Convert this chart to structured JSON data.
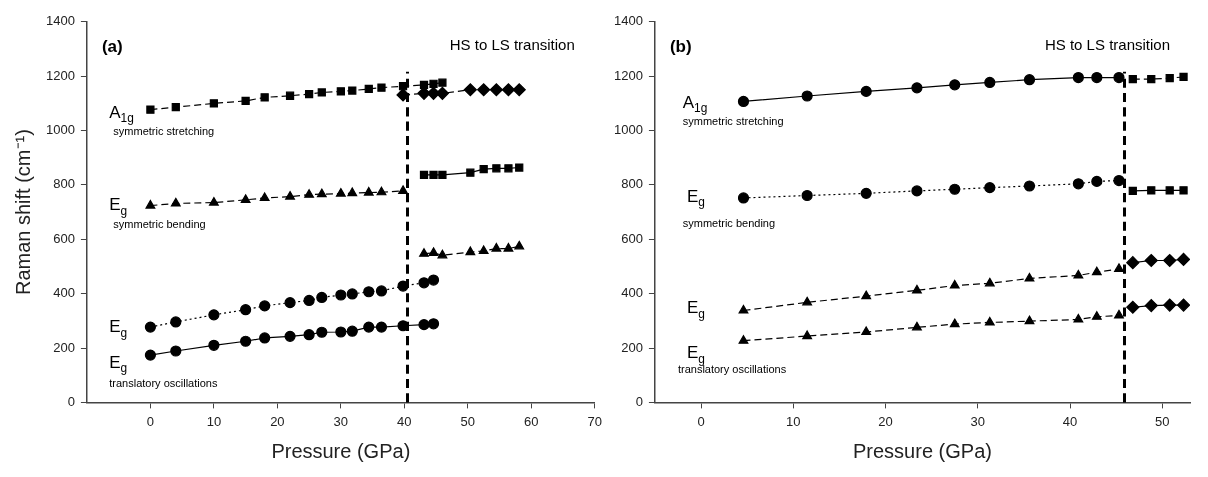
{
  "chart_data": [
    {
      "type": "line",
      "title": "(a)",
      "xlabel": "Pressure (GPa)",
      "ylabel": "Raman shift (cm⁻¹)",
      "xlim": [
        -10,
        70
      ],
      "xticks": [
        0,
        10,
        20,
        30,
        40,
        50,
        60,
        70
      ],
      "ylim": [
        0,
        1400
      ],
      "yticks": [
        0,
        200,
        400,
        600,
        800,
        1000,
        1200,
        1400
      ],
      "series": [
        {
          "color": "#000000",
          "marker": "square",
          "line_style": "dashed",
          "x": [
            0,
            4,
            10,
            15,
            18,
            22,
            25,
            27,
            30,
            31.8,
            34.4,
            36.4,
            39.8,
            43.1,
            44.6,
            46
          ],
          "values": [
            1077,
            1086,
            1100,
            1109,
            1122,
            1128,
            1134,
            1140,
            1144,
            1147,
            1153,
            1158,
            1163,
            1168,
            1172,
            1176
          ]
        },
        {
          "color": "#000000",
          "marker": "diamond",
          "line_style": "dashed",
          "x": [
            39.8,
            43.1,
            44.6,
            46,
            50.4,
            52.5,
            54.5,
            56.4,
            58.1
          ],
          "values": [
            1131,
            1137,
            1137,
            1137,
            1150,
            1150,
            1150,
            1150,
            1150
          ]
        },
        {
          "color": "#000000",
          "marker": "triangle",
          "line_style": "dashed",
          "x": [
            0,
            4,
            10,
            15,
            18,
            22,
            25,
            27,
            30,
            31.8,
            34.4,
            36.4,
            39.8
          ],
          "values": [
            724,
            732,
            735,
            745,
            752,
            757,
            764,
            766,
            768,
            770,
            772,
            773,
            778
          ]
        },
        {
          "color": "#000000",
          "marker": "square",
          "line_style": "solid",
          "x": [
            43.1,
            44.6,
            46,
            50.4,
            52.5,
            54.5,
            56.4,
            58.1
          ],
          "values": [
            837,
            837,
            837,
            845,
            858,
            861,
            861,
            864
          ]
        },
        {
          "color": "#000000",
          "marker": "triangle",
          "line_style": "dashed",
          "x": [
            43.1,
            44.6,
            46,
            50.4,
            52.5,
            54.5,
            56.4,
            58.1
          ],
          "values": [
            547,
            550,
            541,
            553,
            557,
            566,
            566,
            574
          ]
        },
        {
          "color": "#000000",
          "marker": "circle",
          "line_style": "dotted",
          "x": [
            0,
            4,
            10,
            15,
            18,
            22,
            25,
            27,
            30,
            31.8,
            34.4,
            36.4,
            39.8,
            43.1,
            44.6
          ],
          "values": [
            277,
            296,
            322,
            341,
            355,
            367,
            375,
            386,
            395,
            399,
            407,
            410,
            428,
            440,
            450
          ]
        },
        {
          "color": "#000000",
          "marker": "circle",
          "line_style": "solid",
          "x": [
            0,
            4,
            10,
            15,
            18,
            22,
            25,
            27,
            30,
            31.8,
            34.4,
            36.4,
            39.8,
            43.1,
            44.6
          ],
          "values": [
            174,
            189,
            210,
            225,
            237,
            243,
            249,
            258,
            259,
            262,
            277,
            277,
            282,
            286,
            289
          ]
        }
      ],
      "ref_lines": [
        {
          "axis": "x",
          "value": 40.5,
          "label": "HS to LS transition",
          "line_style": "dashed",
          "color": "#000000"
        }
      ],
      "annotations": [
        "A$_{1g}$",
        "symmetric stretching",
        "E$_{g}$",
        "symmetric bending",
        "E$_{g}$",
        "E$_{g}$",
        "translatory oscillations"
      ]
    },
    {
      "type": "line",
      "title": "(b)",
      "xlabel": "Pressure (GPa)",
      "xlim": [
        -5,
        53
      ],
      "xticks": [
        0,
        10,
        20,
        30,
        40,
        50
      ],
      "ylim": [
        0,
        1400
      ],
      "yticks": [
        0,
        200,
        400,
        600,
        800,
        1000,
        1200,
        1400
      ],
      "series": [
        {
          "color": "#000000",
          "marker": "circle",
          "line_style": "solid",
          "x": [
            4.6,
            11.5,
            17.9,
            23.4,
            27.5,
            31.3,
            35.6,
            40.9,
            42.9,
            45.3
          ],
          "values": [
            1107,
            1127,
            1144,
            1157,
            1168,
            1177,
            1187,
            1195,
            1195,
            1195
          ]
        },
        {
          "color": "#000000",
          "marker": "square",
          "line_style": "dashed",
          "x": [
            46.8,
            48.8,
            50.8,
            52.3
          ],
          "values": [
            1189,
            1189,
            1193,
            1197
          ]
        },
        {
          "color": "#000000",
          "marker": "circle",
          "line_style": "dotted",
          "x": [
            4.6,
            11.5,
            17.9,
            23.4,
            27.5,
            31.3,
            35.6,
            40.9,
            42.9,
            45.3
          ],
          "values": [
            752,
            761,
            769,
            778,
            784,
            790,
            796,
            804,
            813,
            816
          ]
        },
        {
          "color": "#000000",
          "marker": "square",
          "line_style": "solid",
          "x": [
            46.8,
            48.8,
            50.8,
            52.3
          ],
          "values": [
            778,
            780,
            780,
            780
          ]
        },
        {
          "color": "#000000",
          "marker": "triangle",
          "line_style": "dashed",
          "x": [
            4.6,
            11.5,
            17.9,
            23.4,
            27.5,
            31.3,
            35.6,
            40.9,
            42.9,
            45.3
          ],
          "values": [
            338,
            368,
            391,
            412,
            430,
            438,
            456,
            467,
            479,
            491
          ]
        },
        {
          "color": "#000000",
          "marker": "diamond",
          "line_style": "solid",
          "x": [
            46.8,
            48.8,
            50.8,
            52.3
          ],
          "values": [
            514,
            522,
            522,
            526
          ]
        },
        {
          "color": "#000000",
          "marker": "triangle",
          "line_style": "dashed",
          "x": [
            4.6,
            11.5,
            17.9,
            23.4,
            27.5,
            31.3,
            35.6,
            40.9,
            42.9,
            45.3
          ],
          "values": [
            227,
            244,
            259,
            276,
            288,
            294,
            299,
            305,
            315,
            320
          ]
        },
        {
          "color": "#000000",
          "marker": "diamond",
          "line_style": "solid",
          "x": [
            46.8,
            48.8,
            50.8,
            52.3
          ],
          "values": [
            350,
            356,
            358,
            358
          ]
        }
      ],
      "ref_lines": [
        {
          "axis": "x",
          "value": 45.9,
          "label": "HS to LS transition",
          "line_style": "dashed",
          "color": "#000000"
        }
      ],
      "annotations": [
        "A$_{1g}$",
        "symmetric stretching",
        "E$_{g}$",
        "symmetric bending",
        "E$_{g}$",
        "E$_{g}$",
        "translatory oscillations"
      ]
    }
  ]
}
